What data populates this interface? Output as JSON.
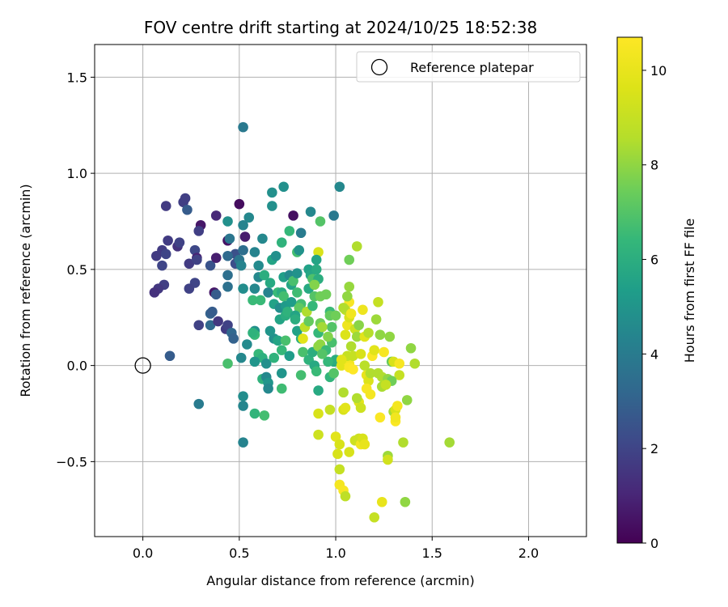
{
  "chart_data": {
    "type": "scatter",
    "title": "FOV centre drift starting at 2024/10/25 18:52:38",
    "xlabel": "Angular distance from reference (arcmin)",
    "ylabel": "Rotation from reference (arcmin)",
    "xlim": [
      -0.25,
      2.3
    ],
    "ylim": [
      -0.89,
      1.67
    ],
    "xticks": [
      0.0,
      0.5,
      1.0,
      1.5,
      2.0
    ],
    "yticks": [
      -0.5,
      0.0,
      0.5,
      1.0,
      1.5
    ],
    "grid": true,
    "legend": {
      "position": "top-right",
      "entries": [
        "Reference platepar"
      ]
    },
    "reference_point": {
      "x": 0.0,
      "y": 0.0
    },
    "colorbar": {
      "label": "Hours from first FF file",
      "min": 0,
      "max": 10.7,
      "ticks": [
        0,
        2,
        4,
        6,
        8,
        10
      ],
      "colormap": "viridis"
    },
    "points": [
      [
        0.52,
        1.24,
        3.9
      ],
      [
        0.12,
        0.83,
        1.7
      ],
      [
        0.21,
        0.85,
        1.8
      ],
      [
        0.22,
        0.87,
        1.8
      ],
      [
        0.23,
        0.81,
        2.8
      ],
      [
        0.3,
        0.73,
        0.6
      ],
      [
        0.29,
        0.7,
        1.8
      ],
      [
        0.38,
        0.78,
        1.1
      ],
      [
        0.5,
        0.84,
        0.3
      ],
      [
        0.73,
        0.93,
        4.8
      ],
      [
        0.67,
        0.9,
        4.8
      ],
      [
        0.78,
        0.78,
        0.4
      ],
      [
        0.67,
        0.83,
        4.8
      ],
      [
        0.87,
        0.8,
        4.5
      ],
      [
        0.99,
        0.78,
        3.9
      ],
      [
        1.02,
        0.93,
        4.5
      ],
      [
        0.92,
        0.75,
        7.0
      ],
      [
        0.55,
        0.77,
        4.5
      ],
      [
        0.44,
        0.75,
        4.8
      ],
      [
        0.52,
        0.73,
        4.3
      ],
      [
        0.07,
        0.57,
        1.7
      ],
      [
        0.1,
        0.6,
        1.7
      ],
      [
        0.13,
        0.65,
        1.7
      ],
      [
        0.18,
        0.62,
        1.4
      ],
      [
        0.19,
        0.64,
        1.9
      ],
      [
        0.27,
        0.6,
        2.1
      ],
      [
        0.28,
        0.56,
        1.0
      ],
      [
        0.12,
        0.58,
        2.0
      ],
      [
        0.1,
        0.52,
        2.0
      ],
      [
        0.24,
        0.53,
        1.7
      ],
      [
        0.28,
        0.55,
        1.9
      ],
      [
        0.27,
        0.43,
        2.0
      ],
      [
        0.24,
        0.4,
        1.9
      ],
      [
        0.11,
        0.42,
        1.8
      ],
      [
        0.08,
        0.4,
        1.6
      ],
      [
        0.06,
        0.38,
        1.4
      ],
      [
        0.35,
        0.52,
        2.5
      ],
      [
        0.38,
        0.56,
        0.8
      ],
      [
        0.37,
        0.38,
        0.6
      ],
      [
        0.38,
        0.37,
        2.8
      ],
      [
        0.44,
        0.65,
        0.5
      ],
      [
        0.45,
        0.66,
        3.8
      ],
      [
        0.48,
        0.58,
        2.4
      ],
      [
        0.52,
        0.6,
        3.5
      ],
      [
        0.53,
        0.67,
        0.7
      ],
      [
        0.58,
        0.59,
        4.3
      ],
      [
        0.62,
        0.66,
        4.5
      ],
      [
        0.44,
        0.57,
        3.3
      ],
      [
        0.48,
        0.53,
        2.3
      ],
      [
        0.5,
        0.55,
        3.8
      ],
      [
        0.51,
        0.52,
        4.3
      ],
      [
        0.44,
        0.47,
        3.5
      ],
      [
        0.44,
        0.41,
        3.6
      ],
      [
        0.52,
        0.4,
        4.7
      ],
      [
        0.58,
        0.4,
        4.5
      ],
      [
        0.6,
        0.52,
        4.6
      ],
      [
        0.6,
        0.46,
        4.5
      ],
      [
        0.65,
        0.38,
        4.3
      ],
      [
        0.61,
        0.34,
        6.5
      ],
      [
        0.57,
        0.34,
        6.5
      ],
      [
        0.35,
        0.27,
        3.0
      ],
      [
        0.36,
        0.28,
        2.8
      ],
      [
        0.35,
        0.21,
        3.3
      ],
      [
        0.39,
        0.23,
        1.6
      ],
      [
        0.43,
        0.19,
        1.7
      ],
      [
        0.44,
        0.21,
        1.9
      ],
      [
        0.46,
        0.17,
        3.2
      ],
      [
        0.47,
        0.14,
        3.0
      ],
      [
        0.58,
        0.18,
        4.8
      ],
      [
        0.58,
        0.16,
        6.5
      ],
      [
        0.57,
        0.17,
        6.2
      ],
      [
        0.54,
        0.11,
        4.6
      ],
      [
        0.6,
        0.06,
        6.4
      ],
      [
        0.62,
        0.04,
        6.1
      ],
      [
        0.64,
        0.01,
        4.8
      ],
      [
        0.58,
        0.02,
        5.0
      ],
      [
        0.44,
        0.01,
        6.8
      ],
      [
        0.51,
        0.04,
        4.5
      ],
      [
        0.29,
        0.21,
        1.9
      ],
      [
        0.14,
        0.05,
        2.8
      ],
      [
        0.29,
        -0.2,
        4.0
      ],
      [
        0.52,
        -0.16,
        4.7
      ],
      [
        0.52,
        -0.21,
        4.4
      ],
      [
        0.52,
        -0.4,
        4.3
      ],
      [
        0.58,
        -0.25,
        6.3
      ],
      [
        0.63,
        -0.26,
        6.7
      ],
      [
        0.62,
        -0.07,
        6.2
      ],
      [
        0.64,
        -0.06,
        4.5
      ],
      [
        0.65,
        -0.09,
        5.0
      ],
      [
        0.65,
        -0.12,
        4.5
      ],
      [
        0.72,
        -0.12,
        6.6
      ],
      [
        0.72,
        -0.04,
        5.0
      ],
      [
        0.68,
        0.04,
        6.2
      ],
      [
        0.68,
        0.14,
        4.8
      ],
      [
        0.7,
        0.13,
        5.6
      ],
      [
        0.72,
        0.08,
        6.4
      ],
      [
        0.74,
        0.13,
        6.8
      ],
      [
        0.76,
        0.05,
        5.3
      ],
      [
        0.66,
        0.18,
        5.0
      ],
      [
        0.71,
        0.24,
        5.6
      ],
      [
        0.63,
        0.47,
        6.0
      ],
      [
        0.66,
        0.43,
        5.8
      ],
      [
        0.67,
        0.55,
        5.6
      ],
      [
        0.69,
        0.57,
        4.8
      ],
      [
        0.72,
        0.64,
        6.2
      ],
      [
        0.7,
        0.38,
        6.5
      ],
      [
        0.72,
        0.38,
        5.9
      ],
      [
        0.73,
        0.36,
        6.7
      ],
      [
        0.68,
        0.32,
        5.5
      ],
      [
        0.71,
        0.3,
        4.7
      ],
      [
        0.74,
        0.31,
        5.2
      ],
      [
        0.74,
        0.26,
        6.0
      ],
      [
        0.75,
        0.28,
        6.2
      ],
      [
        0.77,
        0.33,
        5.3
      ],
      [
        0.73,
        0.46,
        5.4
      ],
      [
        0.76,
        0.47,
        4.6
      ],
      [
        0.77,
        0.42,
        5.6
      ],
      [
        0.78,
        0.44,
        6.8
      ],
      [
        0.8,
        0.48,
        4.9
      ],
      [
        0.8,
        0.38,
        6.6
      ],
      [
        0.76,
        0.7,
        6.4
      ],
      [
        0.8,
        0.59,
        6.7
      ],
      [
        0.82,
        0.69,
        4.0
      ],
      [
        0.81,
        0.6,
        4.9
      ],
      [
        0.86,
        0.5,
        5.5
      ],
      [
        0.86,
        0.4,
        5.8
      ],
      [
        0.87,
        0.47,
        5.7
      ],
      [
        0.88,
        0.45,
        6.9
      ],
      [
        0.82,
        0.32,
        6.7
      ],
      [
        0.81,
        0.3,
        7.2
      ],
      [
        0.79,
        0.26,
        5.6
      ],
      [
        0.79,
        0.24,
        6.0
      ],
      [
        0.8,
        0.18,
        5.5
      ],
      [
        0.82,
        0.14,
        6.0
      ],
      [
        0.83,
        0.07,
        6.8
      ],
      [
        0.86,
        0.03,
        6.2
      ],
      [
        0.82,
        -0.05,
        6.7
      ],
      [
        0.88,
        0.07,
        6.0
      ],
      [
        0.89,
        0.0,
        5.8
      ],
      [
        0.9,
        -0.03,
        6.5
      ],
      [
        0.84,
        0.2,
        8.8
      ],
      [
        0.83,
        0.14,
        9.8
      ],
      [
        0.85,
        0.28,
        8.5
      ],
      [
        0.86,
        0.23,
        7.3
      ],
      [
        0.88,
        0.31,
        6.4
      ],
      [
        0.89,
        0.36,
        7.0
      ],
      [
        0.92,
        0.22,
        7.5
      ],
      [
        0.91,
        0.17,
        6.4
      ],
      [
        0.91,
        0.45,
        6.0
      ],
      [
        0.92,
        0.36,
        7.5
      ],
      [
        0.89,
        0.42,
        7.8
      ],
      [
        0.9,
        0.5,
        5.9
      ],
      [
        0.91,
        0.59,
        9.5
      ],
      [
        0.9,
        0.55,
        5.6
      ],
      [
        0.95,
        0.37,
        7.5
      ],
      [
        0.97,
        0.28,
        6.5
      ],
      [
        0.97,
        0.26,
        7.3
      ],
      [
        0.98,
        0.2,
        7.0
      ],
      [
        0.99,
        0.02,
        5.8
      ],
      [
        1.0,
        0.03,
        6.0
      ],
      [
        0.91,
        0.1,
        8.0
      ],
      [
        0.92,
        0.11,
        8.0
      ],
      [
        0.93,
        0.2,
        8.3
      ],
      [
        0.95,
        0.08,
        6.5
      ],
      [
        0.96,
        0.02,
        6.4
      ],
      [
        0.97,
        -0.06,
        6.3
      ],
      [
        0.99,
        -0.04,
        7.0
      ],
      [
        0.91,
        -0.13,
        5.8
      ],
      [
        0.91,
        -0.25,
        9.5
      ],
      [
        0.91,
        -0.36,
        9.2
      ],
      [
        0.97,
        -0.23,
        9.0
      ],
      [
        1.0,
        -0.37,
        9.8
      ],
      [
        1.02,
        -0.41,
        9.5
      ],
      [
        1.01,
        -0.46,
        9.5
      ],
      [
        1.04,
        -0.23,
        9.5
      ],
      [
        1.05,
        -0.22,
        9.8
      ],
      [
        1.04,
        -0.14,
        8.5
      ],
      [
        1.07,
        -0.45,
        9.5
      ],
      [
        1.02,
        -0.54,
        9.0
      ],
      [
        1.02,
        -0.62,
        10.4
      ],
      [
        1.04,
        -0.65,
        10.5
      ],
      [
        1.05,
        -0.68,
        8.8
      ],
      [
        1.03,
        0.0,
        9.8
      ],
      [
        1.05,
        0.03,
        10.4
      ],
      [
        1.07,
        0.01,
        10.4
      ],
      [
        1.06,
        0.05,
        9.0
      ],
      [
        1.08,
        0.1,
        8.5
      ],
      [
        1.09,
        0.05,
        9.0
      ],
      [
        1.07,
        -0.01,
        10.6
      ],
      [
        1.09,
        -0.02,
        10.8
      ],
      [
        1.05,
        0.16,
        9.6
      ],
      [
        1.06,
        0.21,
        10.2
      ],
      [
        1.07,
        0.25,
        9.5
      ],
      [
        1.07,
        0.33,
        10.5
      ],
      [
        1.05,
        0.29,
        8.8
      ],
      [
        1.04,
        0.3,
        8.5
      ],
      [
        1.06,
        0.36,
        8.0
      ],
      [
        1.07,
        0.41,
        8.1
      ],
      [
        1.08,
        0.27,
        10.3
      ],
      [
        1.03,
        0.03,
        9.8
      ],
      [
        1.07,
        0.55,
        7.5
      ],
      [
        1.11,
        0.62,
        8.5
      ],
      [
        1.1,
        0.19,
        9.2
      ],
      [
        1.11,
        0.15,
        8.2
      ],
      [
        1.12,
        0.21,
        7.9
      ],
      [
        1.14,
        0.29,
        10.2
      ],
      [
        1.15,
        0.15,
        9.8
      ],
      [
        1.17,
        0.17,
        8.6
      ],
      [
        1.13,
        0.06,
        9.5
      ],
      [
        1.15,
        0.0,
        8.7
      ],
      [
        1.16,
        -0.05,
        10.0
      ],
      [
        1.17,
        -0.08,
        9.6
      ],
      [
        1.16,
        -0.12,
        10.5
      ],
      [
        1.18,
        -0.15,
        10.4
      ],
      [
        1.12,
        -0.19,
        9.8
      ],
      [
        1.13,
        -0.22,
        9.2
      ],
      [
        1.11,
        -0.17,
        8.5
      ],
      [
        1.1,
        -0.39,
        9.2
      ],
      [
        1.12,
        -0.38,
        9.2
      ],
      [
        1.13,
        -0.41,
        10.3
      ],
      [
        1.14,
        -0.38,
        9.5
      ],
      [
        1.15,
        -0.41,
        10.0
      ],
      [
        1.18,
        -0.04,
        8.5
      ],
      [
        1.19,
        0.05,
        10.6
      ],
      [
        1.2,
        0.08,
        9.8
      ],
      [
        1.21,
        0.24,
        8.2
      ],
      [
        1.22,
        0.33,
        9.0
      ],
      [
        1.23,
        0.16,
        8.0
      ],
      [
        1.22,
        -0.04,
        8.5
      ],
      [
        1.23,
        -0.27,
        10.6
      ],
      [
        1.24,
        -0.06,
        8.5
      ],
      [
        1.25,
        0.07,
        10.5
      ],
      [
        1.27,
        -0.07,
        8.0
      ],
      [
        1.28,
        0.15,
        8.0
      ],
      [
        1.29,
        0.02,
        7.3
      ],
      [
        1.3,
        0.02,
        9.5
      ],
      [
        1.3,
        -0.24,
        8.3
      ],
      [
        1.31,
        -0.23,
        9.5
      ],
      [
        1.31,
        -0.29,
        10.6
      ],
      [
        1.31,
        -0.27,
        10.3
      ],
      [
        1.32,
        -0.21,
        10.4
      ],
      [
        1.33,
        -0.05,
        9.0
      ],
      [
        1.33,
        0.01,
        10.5
      ],
      [
        1.35,
        -0.4,
        8.5
      ],
      [
        1.37,
        -0.18,
        8.0
      ],
      [
        1.39,
        0.09,
        8.0
      ],
      [
        1.41,
        0.01,
        8.5
      ],
      [
        1.36,
        -0.71,
        8.0
      ],
      [
        1.24,
        -0.71,
        10.0
      ],
      [
        1.2,
        -0.79,
        9.0
      ],
      [
        1.27,
        -0.47,
        8.2
      ],
      [
        1.27,
        -0.49,
        9.3
      ],
      [
        1.59,
        -0.4,
        8.3
      ],
      [
        1.24,
        -0.11,
        8.4
      ],
      [
        1.29,
        -0.08,
        7.5
      ],
      [
        1.26,
        -0.1,
        9.0
      ],
      [
        1.0,
        0.26,
        7.5
      ],
      [
        0.98,
        0.12,
        6.8
      ],
      [
        0.93,
        0.06,
        7.0
      ],
      [
        0.96,
        0.15,
        7.8
      ]
    ]
  }
}
